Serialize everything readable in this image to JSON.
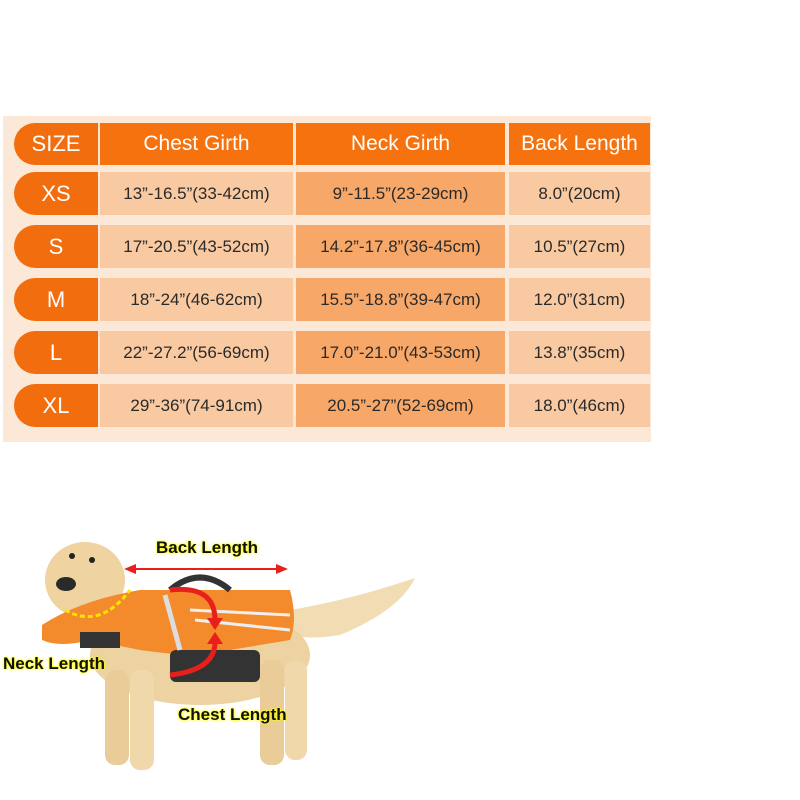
{
  "table": {
    "headers": [
      "SIZE",
      "Chest Girth",
      "Neck Girth",
      "Back Length"
    ],
    "rows": [
      {
        "size": "XS",
        "chest": "13”-16.5”(33-42cm)",
        "neck": "9”-11.5”(23-29cm)",
        "back": "8.0”(20cm)"
      },
      {
        "size": "S",
        "chest": "17”-20.5”(43-52cm)",
        "neck": "14.2”-17.8”(36-45cm)",
        "back": "10.5”(27cm)"
      },
      {
        "size": "M",
        "chest": "18”-24”(46-62cm)",
        "neck": "15.5”-18.8”(39-47cm)",
        "back": "12.0”(31cm)"
      },
      {
        "size": "L",
        "chest": "22”-27.2”(56-69cm)",
        "neck": "17.0”-21.0”(43-53cm)",
        "back": "13.8”(35cm)"
      },
      {
        "size": "XL",
        "chest": "29”-36”(74-91cm)",
        "neck": "20.5”-27”(52-69cm)",
        "back": "18.0”(46cm)"
      }
    ]
  },
  "diagram": {
    "back_label": "Back Length",
    "neck_label": "Neck Length",
    "chest_label": "Chest Length"
  },
  "colors": {
    "accent": "#f5720f",
    "light_cell": "#f9c9a1",
    "mid_cell": "#f7a767",
    "panel": "#fbe8d6",
    "arrow": "#e8201c",
    "highlight": "#ffff00"
  }
}
